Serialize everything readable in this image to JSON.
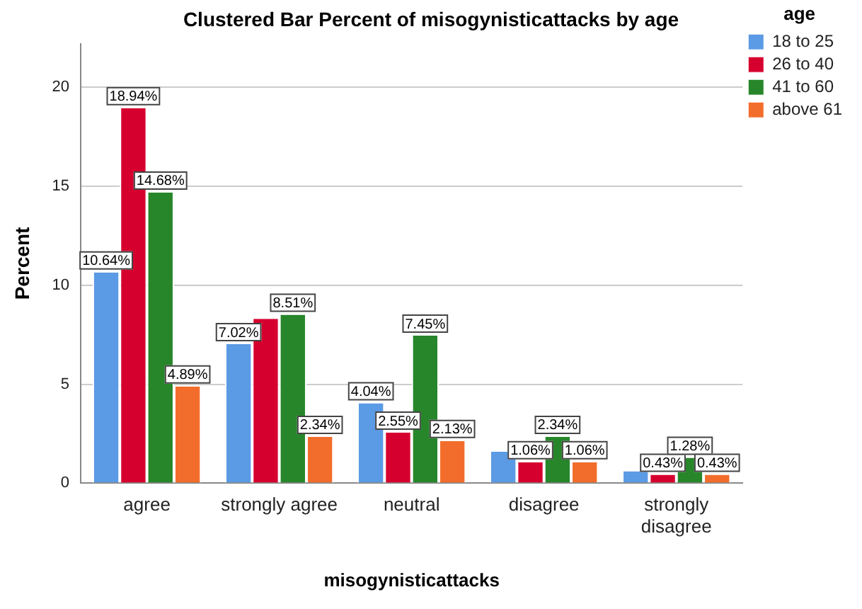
{
  "chart_data": {
    "type": "bar",
    "title": "Clustered Bar Percent of misogynisticattacks by age",
    "xlabel": "misogynisticattacks",
    "ylabel": "Percent",
    "legend_title": "age",
    "categories": [
      "agree",
      "strongly agree",
      "neutral",
      "disagree",
      "strongly disagree"
    ],
    "series": [
      {
        "name": "18 to 25",
        "color": "#5b9ae4",
        "values": [
          10.64,
          7.02,
          4.04,
          1.6,
          0.6
        ],
        "value_labels": [
          "10.64%",
          "7.02%",
          "4.04%",
          null,
          null
        ]
      },
      {
        "name": "26 to 40",
        "color": "#d6002f",
        "values": [
          18.94,
          8.3,
          2.55,
          1.06,
          0.43
        ],
        "value_labels": [
          "18.94%",
          null,
          "2.55%",
          "1.06%",
          "0.43%"
        ]
      },
      {
        "name": "41 to 60",
        "color": "#27862a",
        "values": [
          14.68,
          8.51,
          7.45,
          2.34,
          1.28
        ],
        "value_labels": [
          "14.68%",
          "8.51%",
          "7.45%",
          "2.34%",
          "1.28%"
        ]
      },
      {
        "name": "above 61",
        "color": "#f26d2b",
        "values": [
          4.89,
          2.34,
          2.13,
          1.06,
          0.43
        ],
        "value_labels": [
          "4.89%",
          "2.34%",
          "2.13%",
          "1.06%",
          "0.43%"
        ]
      }
    ],
    "ylim": [
      0,
      22.2
    ],
    "yticks": [
      0,
      5,
      10,
      15,
      20
    ],
    "grid": "y",
    "legend": "top right"
  }
}
